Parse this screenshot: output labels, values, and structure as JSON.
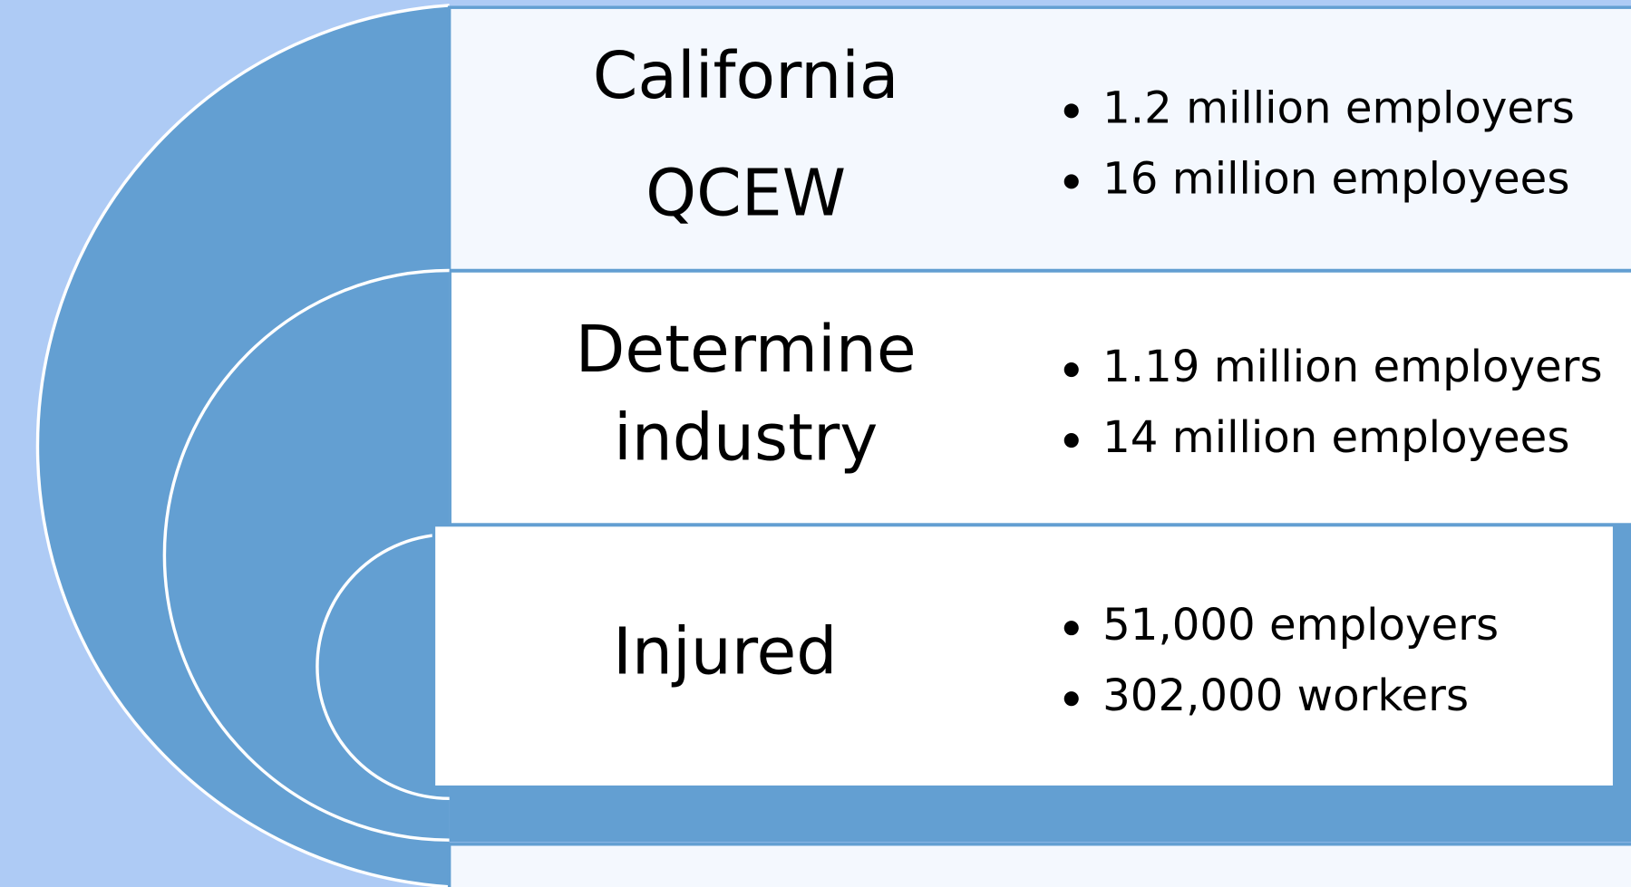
{
  "rows": [
    {
      "title": [
        "California",
        "QCEW"
      ],
      "bullets": [
        "1.2 million employers",
        "16 million employees"
      ]
    },
    {
      "title": [
        "Determine",
        "industry"
      ],
      "bullets": [
        "1.19 million employers",
        "14 million employees"
      ]
    },
    {
      "title": [
        "Injured"
      ],
      "bullets": [
        "51,000 employers",
        "302,000 workers"
      ]
    }
  ]
}
